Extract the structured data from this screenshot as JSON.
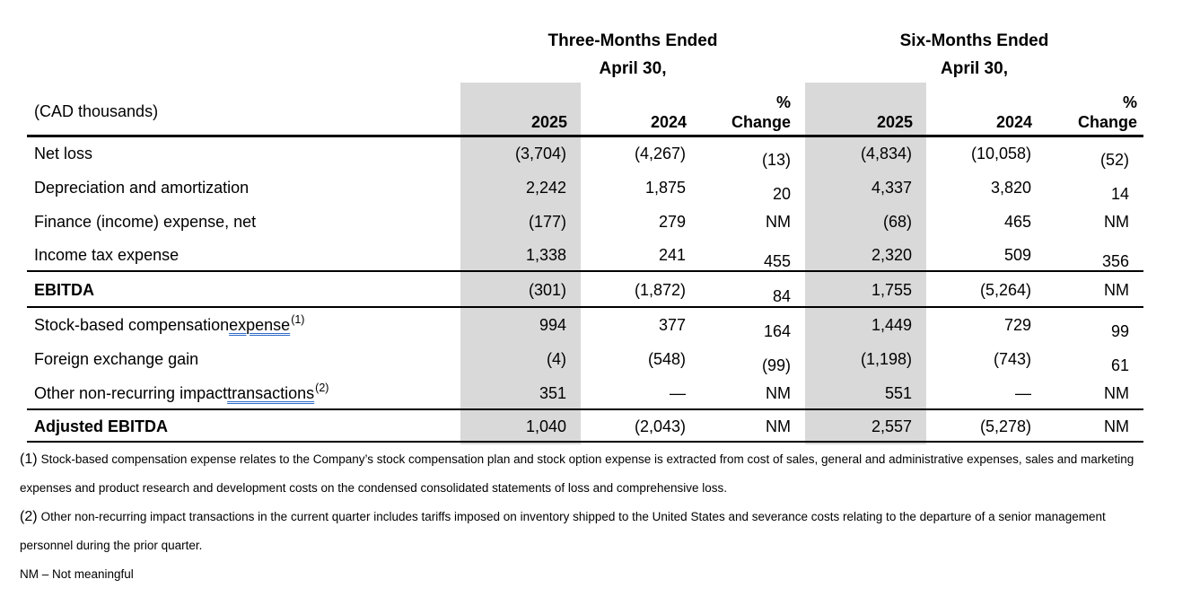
{
  "table": {
    "units_label": "(CAD thousands)",
    "group_headers": [
      {
        "title": "Three-Months Ended",
        "subtitle": "April 30,"
      },
      {
        "title": "Six-Months Ended",
        "subtitle": "April 30,"
      }
    ],
    "column_headers": {
      "year_2025": "2025",
      "year_2024": "2024",
      "pct_line1": "%",
      "pct_line2": "Change"
    },
    "rows": [
      {
        "label": "Net loss",
        "bold": false,
        "values": [
          "(3,704)",
          "(4,267)",
          "(13)",
          "(4,834)",
          "(10,058)",
          "(52)"
        ]
      },
      {
        "label": "Depreciation and amortization",
        "bold": false,
        "values": [
          "2,242",
          "1,875",
          "20",
          "4,337",
          "3,820",
          "14"
        ]
      },
      {
        "label": "Finance (income) expense, net",
        "bold": false,
        "values": [
          "(177)",
          "279",
          "NM",
          "(68)",
          "465",
          "NM"
        ]
      },
      {
        "label": "Income tax expense",
        "bold": false,
        "values": [
          "1,338",
          "241",
          "455",
          "2,320",
          "509",
          "356"
        ]
      },
      {
        "label": "EBITDA",
        "bold": true,
        "values": [
          "(301)",
          "(1,872)",
          "84",
          "1,755",
          "(5,264)",
          "NM"
        ]
      },
      {
        "label": "Stock-based compensation ",
        "underlined_word": "expense",
        "superscript": "(1)",
        "bold": false,
        "values": [
          "994",
          "377",
          "164",
          "1,449",
          "729",
          "99"
        ]
      },
      {
        "label": "Foreign exchange gain",
        "bold": false,
        "values": [
          "(4)",
          "(548)",
          "(99)",
          "(1,198)",
          "(743)",
          "61"
        ]
      },
      {
        "label": "Other non-recurring impact ",
        "underlined_word": "transactions",
        "superscript": "(2)",
        "bold": false,
        "values": [
          "351",
          "—",
          "NM",
          "551",
          "—",
          "NM"
        ]
      },
      {
        "label": "Adjusted EBITDA",
        "bold": true,
        "values": [
          "1,040",
          "(2,043)",
          "NM",
          "2,557",
          "(5,278)",
          "NM"
        ]
      }
    ]
  },
  "footnotes": [
    {
      "marker": "(1)",
      "text": "Stock-based compensation expense relates to the Company’s stock compensation plan and stock option expense is extracted from cost of sales, general and administrative expenses, sales and marketing expenses and product research and development costs on the condensed consolidated statements of loss and comprehensive loss."
    },
    {
      "marker": "(2)",
      "text": "Other non-recurring impact transactions in the current quarter includes tariffs imposed on inventory shipped to the United States and severance costs relating to the departure of a senior management personnel during the prior quarter."
    }
  ],
  "nm_note": "NM – Not meaningful",
  "colors": {
    "column_shading": "#d9d9d9",
    "rule_black": "#000000",
    "grammar_underline_blue": "#2e6bc6",
    "text_black": "#000000"
  }
}
